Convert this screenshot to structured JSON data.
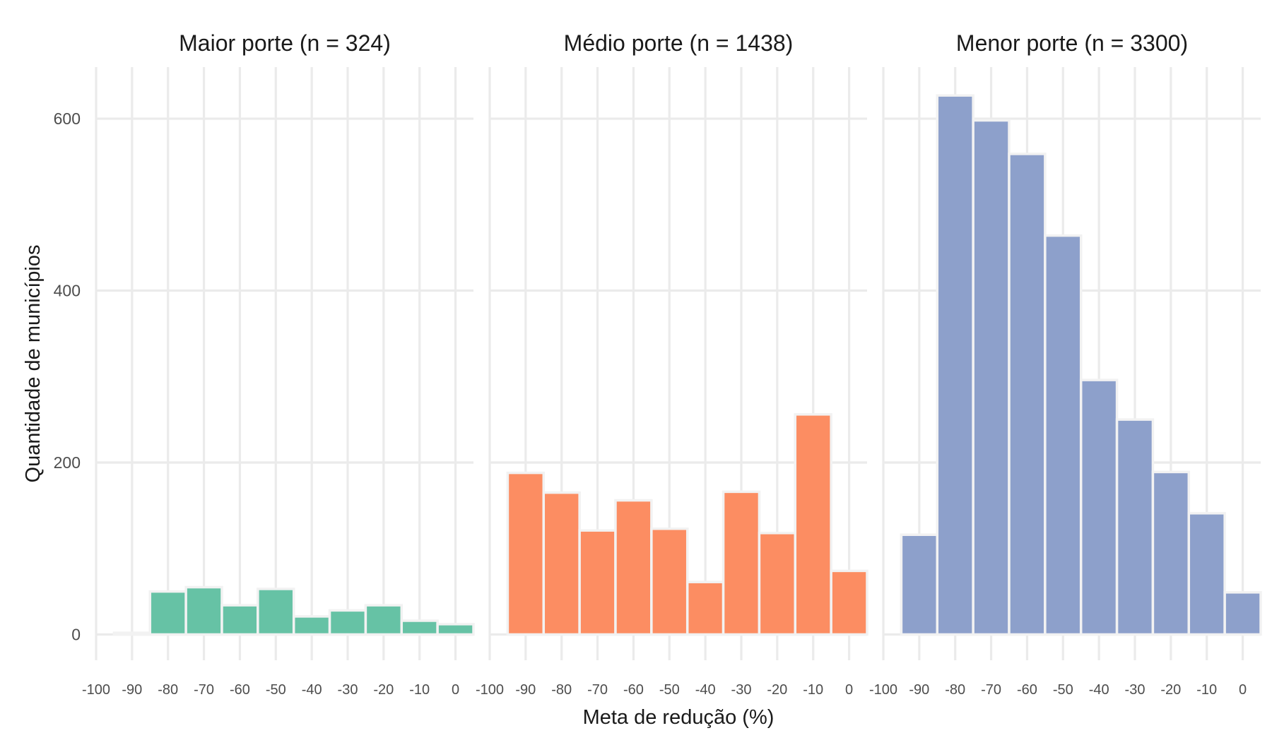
{
  "chart_data": {
    "type": "bar",
    "xlabel": "Meta de redução (%)",
    "ylabel": "Quantidade de municípios",
    "xlim": [
      -100,
      5
    ],
    "ylim": [
      -30,
      660
    ],
    "x_ticks": [
      "-100",
      "-90",
      "-80",
      "-70",
      "-60",
      "-50",
      "-40",
      "-30",
      "-20",
      "-10",
      "0"
    ],
    "x_tick_values": [
      -100,
      -90,
      -80,
      -70,
      -60,
      -50,
      -40,
      -30,
      -20,
      -10,
      0
    ],
    "y_ticks": [
      "0",
      "200",
      "400",
      "600"
    ],
    "y_tick_values": [
      0,
      200,
      400,
      600
    ],
    "grid": true,
    "bin_width": 10,
    "panels": [
      {
        "title": "Maior porte (n = 324)",
        "color": "#66c2a5",
        "bins": [
          -90,
          -80,
          -70,
          -60,
          -50,
          -40,
          -30,
          -20,
          -10,
          0
        ],
        "values": [
          2,
          50,
          55,
          34,
          53,
          21,
          28,
          34,
          16,
          12
        ]
      },
      {
        "title": "Médio porte (n = 1438)",
        "color": "#fc8d62",
        "bins": [
          -90,
          -80,
          -70,
          -60,
          -50,
          -40,
          -30,
          -20,
          -10,
          0
        ],
        "values": [
          188,
          165,
          121,
          156,
          123,
          61,
          166,
          118,
          256,
          74
        ]
      },
      {
        "title": "Menor porte (n = 3300)",
        "color": "#8da0cb",
        "bins": [
          -90,
          -80,
          -70,
          -60,
          -50,
          -40,
          -30,
          -20,
          -10,
          0
        ],
        "values": [
          116,
          627,
          598,
          559,
          464,
          296,
          250,
          189,
          141,
          49
        ]
      }
    ]
  }
}
